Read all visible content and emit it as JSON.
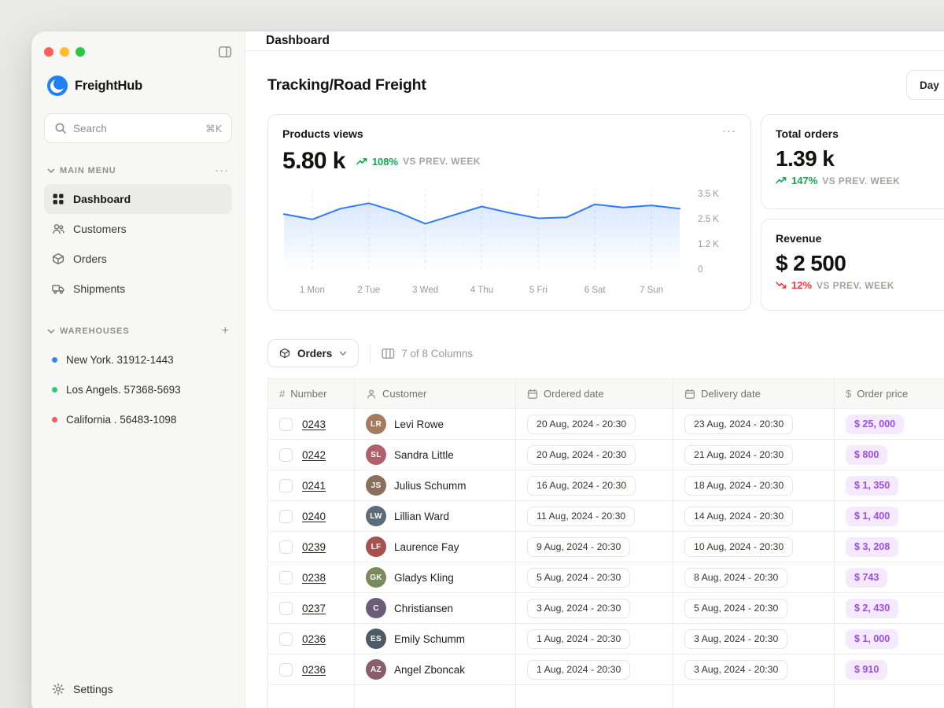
{
  "sidebar": {
    "logo_text": "FreightHub",
    "search": {
      "placeholder": "Search",
      "shortcut": "⌘K"
    },
    "main_menu_label": "MAIN MENU",
    "menu_items": [
      {
        "label": "Dashboard",
        "icon": "grid-icon",
        "active": true
      },
      {
        "label": "Customers",
        "icon": "users-icon",
        "active": false
      },
      {
        "label": "Orders",
        "icon": "box-icon",
        "active": false
      },
      {
        "label": "Shipments",
        "icon": "truck-icon",
        "active": false
      }
    ],
    "warehouses_label": "WAREHOUSES",
    "warehouses": [
      {
        "label": "New York. 31912-1443",
        "dot_color": "#3b82f6"
      },
      {
        "label": "Los Angels. 57368-5693",
        "dot_color": "#2fc76c"
      },
      {
        "label": "California . 56483-1098",
        "dot_color": "#f25c5c"
      }
    ],
    "settings_label": "Settings"
  },
  "header": {
    "title": "Dashboard"
  },
  "page": {
    "title": "Tracking/Road Freight",
    "period_button": "Day"
  },
  "stats": {
    "products_views": {
      "title": "Products views",
      "value": "5.80 k",
      "delta": "108%",
      "delta_note": "VS PREV. WEEK",
      "trend": "up"
    },
    "total_orders": {
      "title": "Total orders",
      "value": "1.39 k",
      "delta": "147%",
      "delta_note": "VS PREV. WEEK",
      "trend": "up"
    },
    "revenue": {
      "title": "Revenue",
      "value": "$ 2 500",
      "delta": "12%",
      "delta_note": "VS PREV. WEEK",
      "trend": "down"
    }
  },
  "chart_data": {
    "type": "line",
    "title": "Products views",
    "x_labels": [
      "1 Mon",
      "2 Tue",
      "3 Wed",
      "4 Thu",
      "5 Fri",
      "6 Sat",
      "7 Sun"
    ],
    "y_tick_labels": [
      "3.5 K",
      "2.5 K",
      "1.2 K",
      "0"
    ],
    "ylim": [
      0,
      3.5
    ],
    "unit": "K views",
    "grid": "dashed",
    "legend": "none",
    "line_color": "#2f7cf6",
    "series": [
      {
        "name": "Products views",
        "values": [
          2.55,
          2.3,
          2.8,
          3.05,
          2.65,
          2.1,
          2.5,
          2.9,
          2.6,
          2.35,
          2.4,
          3.0,
          2.85,
          2.95,
          2.8
        ]
      }
    ]
  },
  "table": {
    "orders_filter_label": "Orders",
    "columns_info": "7 of 8 Columns",
    "columns": [
      {
        "label": "Number",
        "icon": "hash-icon"
      },
      {
        "label": "Customer",
        "icon": "person-icon"
      },
      {
        "label": "Ordered date",
        "icon": "calendar-icon"
      },
      {
        "label": "Delivery date",
        "icon": "calendar-icon"
      },
      {
        "label": "Order price",
        "icon": "dollar-icon"
      }
    ],
    "rows": [
      {
        "number": "0243",
        "customer": "Levi Rowe",
        "ordered": "20 Aug, 2024 - 20:30",
        "delivery": "23 Aug, 2024 - 20:30",
        "price": "$ 25, 000"
      },
      {
        "number": "0242",
        "customer": "Sandra Little",
        "ordered": "20 Aug, 2024 - 20:30",
        "delivery": "21 Aug, 2024 - 20:30",
        "price": "$ 800"
      },
      {
        "number": "0241",
        "customer": "Julius Schumm",
        "ordered": "16 Aug, 2024 - 20:30",
        "delivery": "18 Aug, 2024 - 20:30",
        "price": "$ 1, 350"
      },
      {
        "number": "0240",
        "customer": "Lillian Ward",
        "ordered": "11 Aug, 2024 - 20:30",
        "delivery": "14 Aug, 2024 - 20:30",
        "price": "$ 1, 400"
      },
      {
        "number": "0239",
        "customer": "Laurence Fay",
        "ordered": "9 Aug, 2024 - 20:30",
        "delivery": "10 Aug, 2024 - 20:30",
        "price": "$ 3, 208"
      },
      {
        "number": "0238",
        "customer": "Gladys Kling",
        "ordered": "5 Aug, 2024 - 20:30",
        "delivery": "8 Aug, 2024 - 20:30",
        "price": "$ 743"
      },
      {
        "number": "0237",
        "customer": "Christiansen",
        "ordered": "3 Aug, 2024 - 20:30",
        "delivery": "5 Aug, 2024 - 20:30",
        "price": "$ 2, 430"
      },
      {
        "number": "0236",
        "customer": "Emily Schumm",
        "ordered": "1 Aug, 2024 - 20:30",
        "delivery": "3 Aug, 2024 - 20:30",
        "price": "$ 1, 000"
      },
      {
        "number": "0236",
        "customer": "Angel Zboncak",
        "ordered": "1 Aug, 2024 - 20:30",
        "delivery": "3 Aug, 2024 - 20:30",
        "price": "$ 910"
      },
      {
        "number": "",
        "customer": "",
        "ordered": "",
        "delivery": "",
        "price": ""
      }
    ]
  },
  "colors": {
    "accent_blue": "#2f7cf6",
    "positive_green": "#0ea94e",
    "negative_red": "#ef3b3b",
    "price_pill_bg": "#f5e9fd",
    "price_pill_text": "#9b4def",
    "warehouse_dots": [
      "#3b82f6",
      "#2fc76c",
      "#f25c5c"
    ]
  }
}
